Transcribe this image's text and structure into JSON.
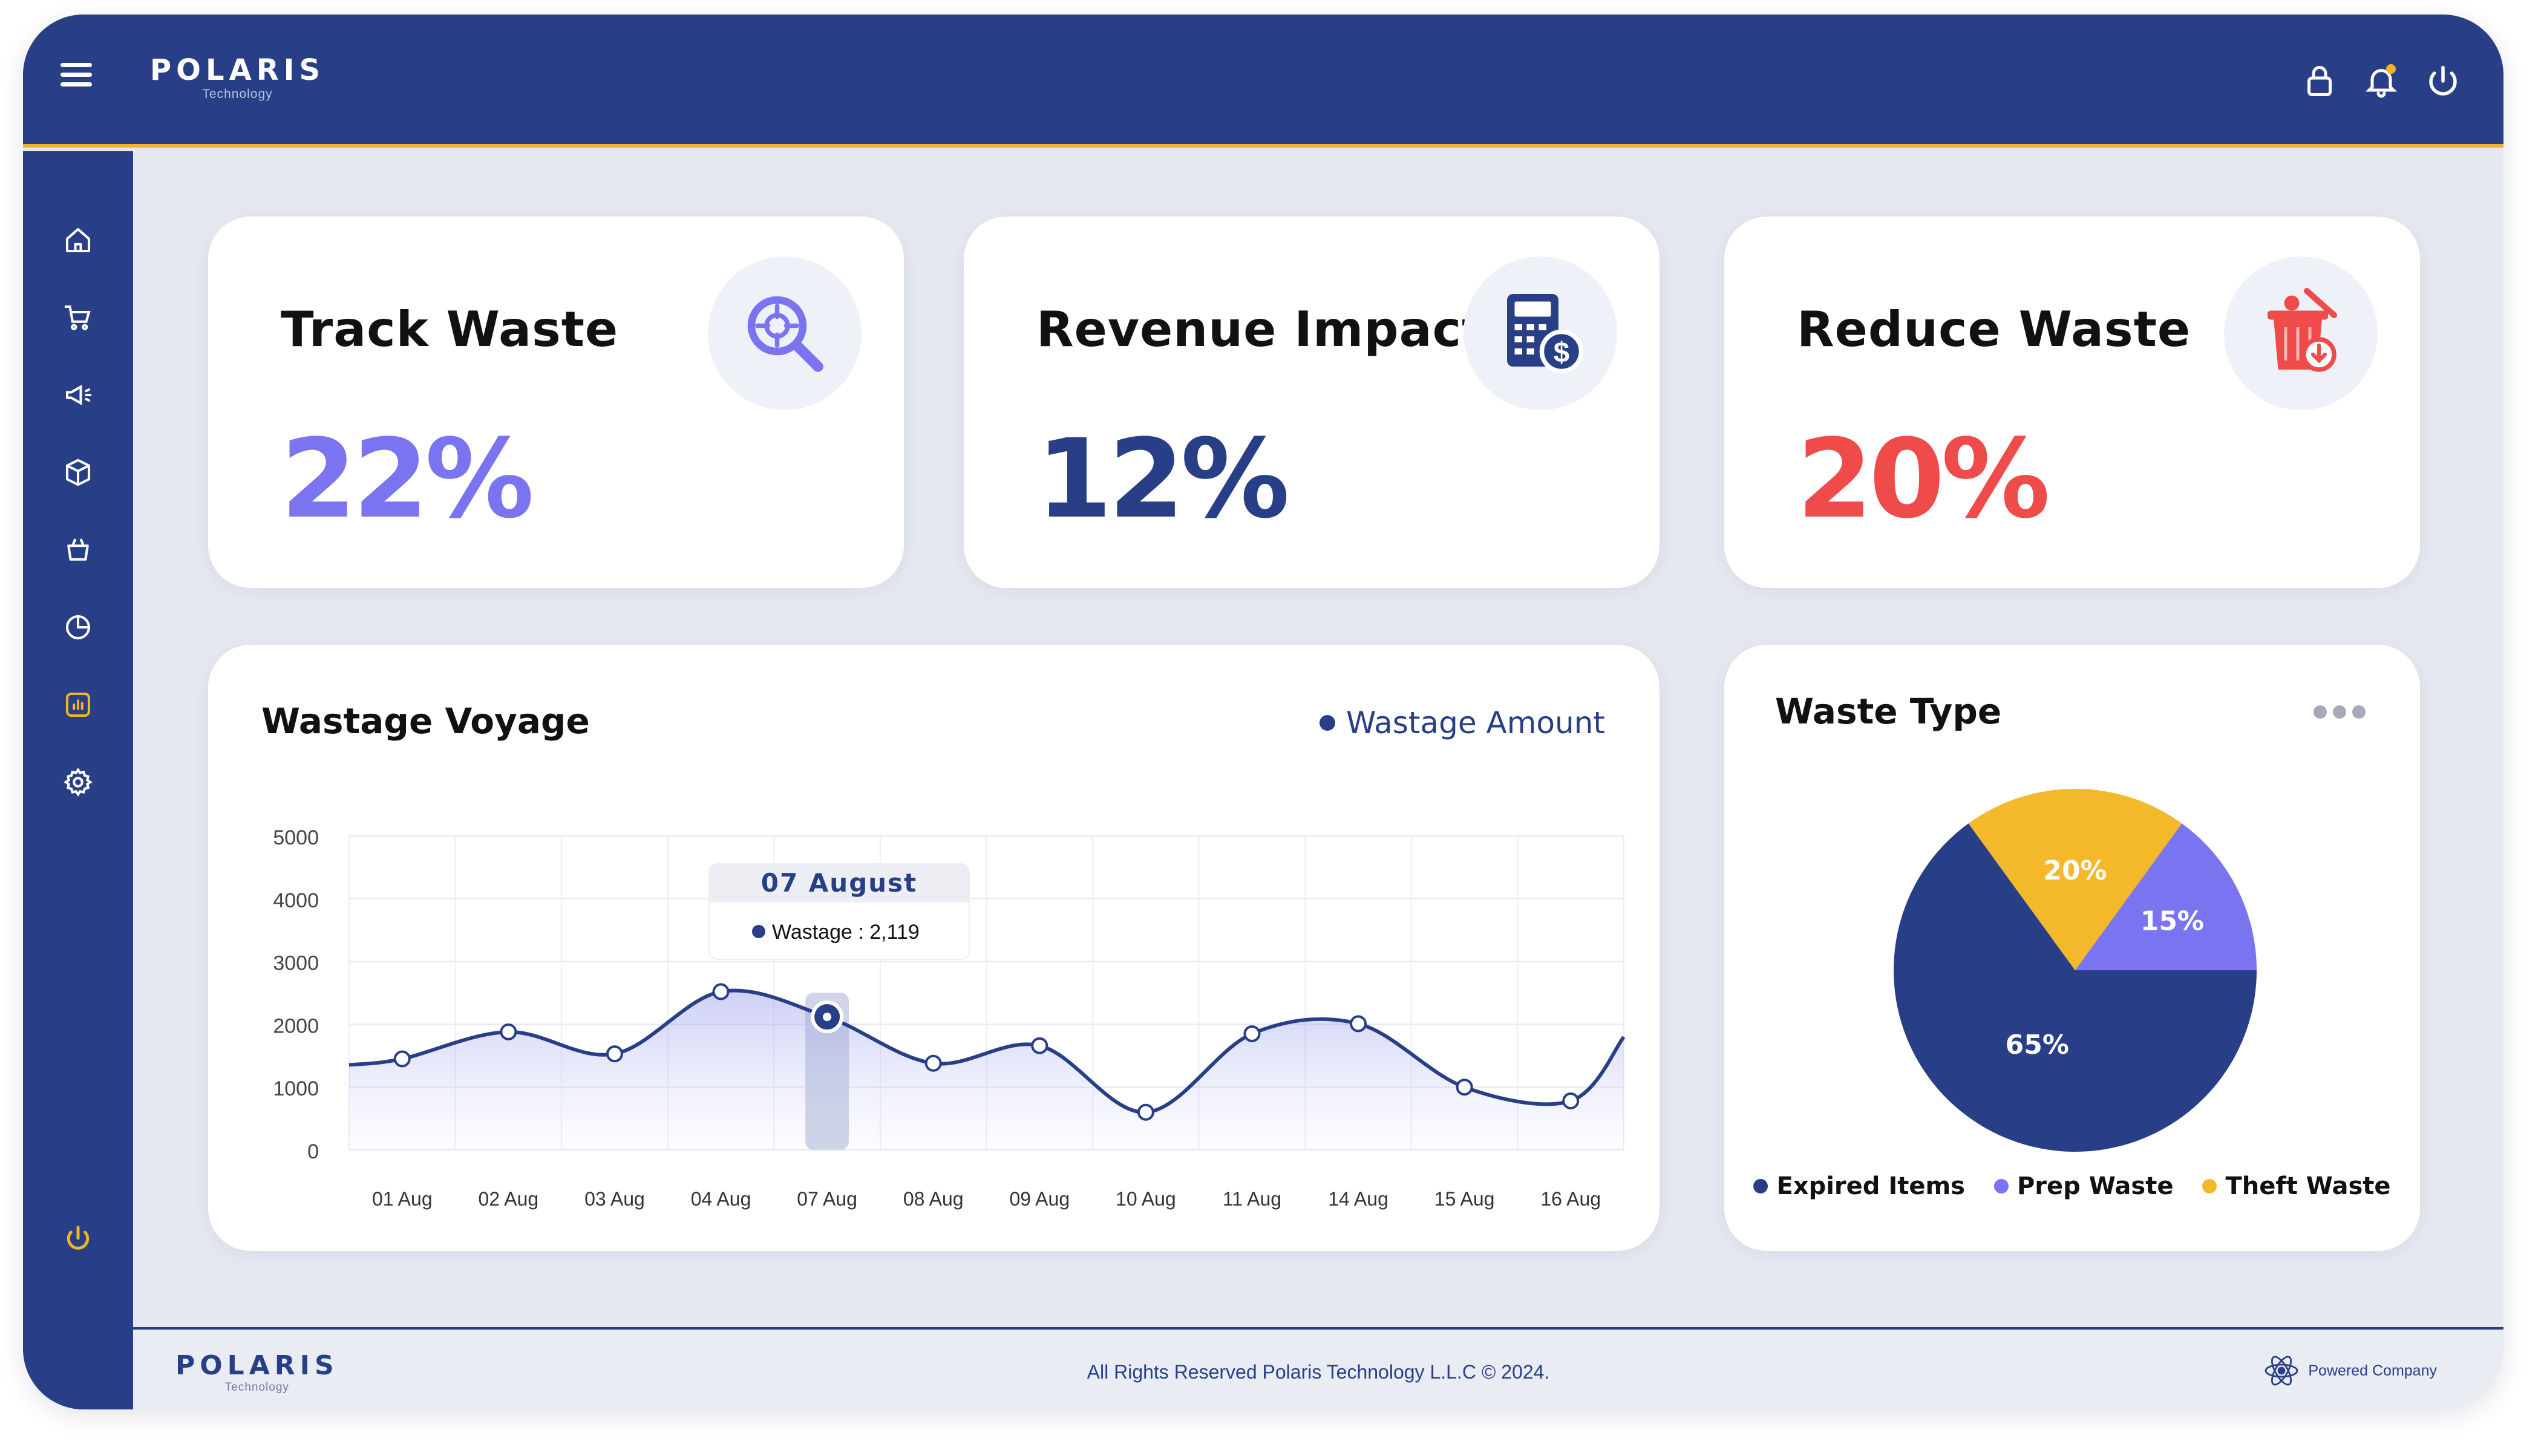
{
  "header": {
    "logo_text": "POLARIS",
    "logo_sub": "Technology"
  },
  "sidebar": {
    "items": [
      {
        "icon": "home-icon"
      },
      {
        "icon": "cart-icon"
      },
      {
        "icon": "megaphone-icon"
      },
      {
        "icon": "box-icon"
      },
      {
        "icon": "basket-icon"
      },
      {
        "icon": "pie-chart-icon"
      },
      {
        "icon": "bar-report-icon",
        "active": true
      },
      {
        "icon": "gear-icon"
      }
    ],
    "bottom_icon": "power-icon"
  },
  "stats": [
    {
      "title": "Track Waste",
      "value": "22%",
      "color": "#7b74f0",
      "icon": "magnify-target-icon"
    },
    {
      "title": "Revenue Impact",
      "value": "12%",
      "color": "#283f87",
      "icon": "calculator-dollar-icon"
    },
    {
      "title": "Reduce Waste",
      "value": "20%",
      "color": "#ef4b4b",
      "icon": "trash-bin-icon"
    }
  ],
  "voyage": {
    "title": "Wastage Voyage",
    "legend": "Wastage Amount",
    "tooltip_title": "07 August",
    "tooltip_value": "Wastage : 2,119"
  },
  "waste_type": {
    "title": "Waste Type",
    "legend": [
      {
        "label": "Expired Items",
        "color": "#283f87"
      },
      {
        "label": "Prep Waste",
        "color": "#7b74f0"
      },
      {
        "label": "Theft Waste",
        "color": "#f4b92b"
      }
    ]
  },
  "footer": {
    "logo_text": "POLARIS",
    "logo_sub": "Technology",
    "copyright": "All Rights Reserved Polaris Technology L.L.C © 2024.",
    "powered": "Powered Company"
  },
  "chart_data": [
    {
      "type": "line",
      "title": "Wastage Voyage",
      "xlabel": "",
      "ylabel": "",
      "ylim": [
        0,
        5000
      ],
      "yticks": [
        "0",
        "1000",
        "2000",
        "3000",
        "4000",
        "5000"
      ],
      "categories": [
        "01 Aug",
        "02 Aug",
        "03 Aug",
        "04 Aug",
        "07 Aug",
        "08 Aug",
        "09 Aug",
        "10 Aug",
        "11 Aug",
        "14 Aug",
        "15 Aug",
        "16 Aug"
      ],
      "series": [
        {
          "name": "Wastage Amount",
          "values": [
            1450,
            1880,
            1530,
            2520,
            2119,
            1380,
            1660,
            600,
            1850,
            2010,
            1000,
            780
          ]
        }
      ],
      "highlight_category": "07 Aug",
      "grid": true,
      "legend": "top-right"
    },
    {
      "type": "pie",
      "title": "Waste Type",
      "slices": [
        {
          "label": "Expired Items",
          "value": 65,
          "display": "65%",
          "color": "#283f87"
        },
        {
          "label": "Prep Waste",
          "value": 15,
          "display": "15%",
          "color": "#7b74f0"
        },
        {
          "label": "Theft Waste",
          "value": 20,
          "display": "20%",
          "color": "#f4b92b"
        }
      ],
      "legend": "bottom"
    }
  ]
}
